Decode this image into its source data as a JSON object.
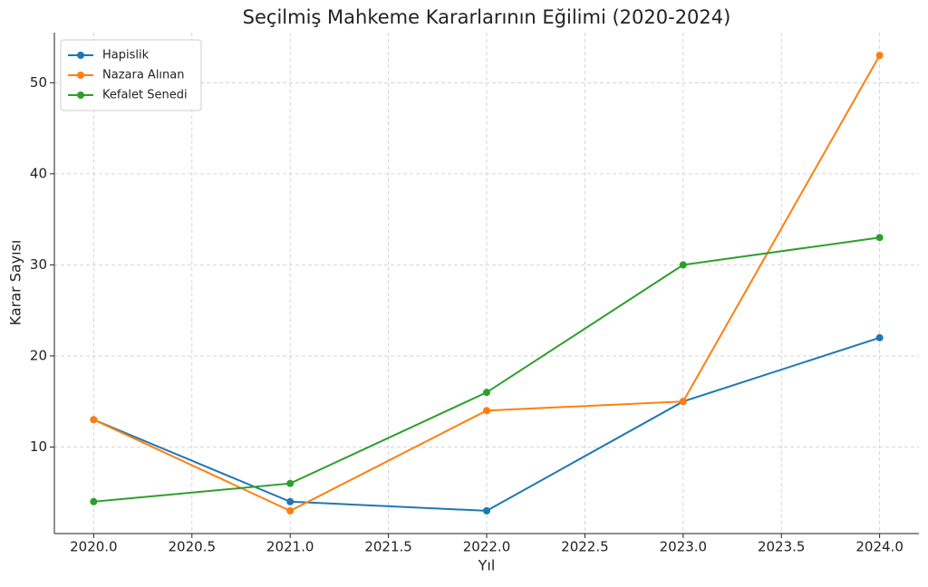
{
  "chart_data": {
    "type": "line",
    "title": "Seçilmiş Mahkeme Kararlarının Eğilimi (2020-2024)",
    "x_label": "Yıl",
    "y_label": "Karar Sayısı",
    "x": [
      2020,
      2021,
      2022,
      2023,
      2024
    ],
    "series": [
      {
        "name": "Hapislik",
        "color": "#1f77b4",
        "values": [
          13,
          4,
          3,
          15,
          22
        ]
      },
      {
        "name": "Nazara Alınan",
        "color": "#ff7f0e",
        "values": [
          13,
          3,
          14,
          15,
          53
        ]
      },
      {
        "name": "Kefalet Senedi",
        "color": "#2ca02c",
        "values": [
          4,
          6,
          16,
          30,
          33
        ]
      }
    ],
    "xlim": [
      2019.8,
      2024.2
    ],
    "xticks": [
      {
        "value": 2020,
        "label": "2020.0"
      },
      {
        "value": 2020.5,
        "label": "2020.5"
      },
      {
        "value": 2021,
        "label": "2021.0"
      },
      {
        "value": 2021.5,
        "label": "2021.5"
      },
      {
        "value": 2022,
        "label": "2022.0"
      },
      {
        "value": 2022.5,
        "label": "2022.5"
      },
      {
        "value": 2023,
        "label": "2023.0"
      },
      {
        "value": 2023.5,
        "label": "2023.5"
      },
      {
        "value": 2024,
        "label": "2024.0"
      }
    ],
    "ylim": [
      0.5,
      55.5
    ],
    "yticks": [
      10,
      20,
      30,
      40,
      50
    ],
    "grid": true,
    "legend": "upper left"
  }
}
